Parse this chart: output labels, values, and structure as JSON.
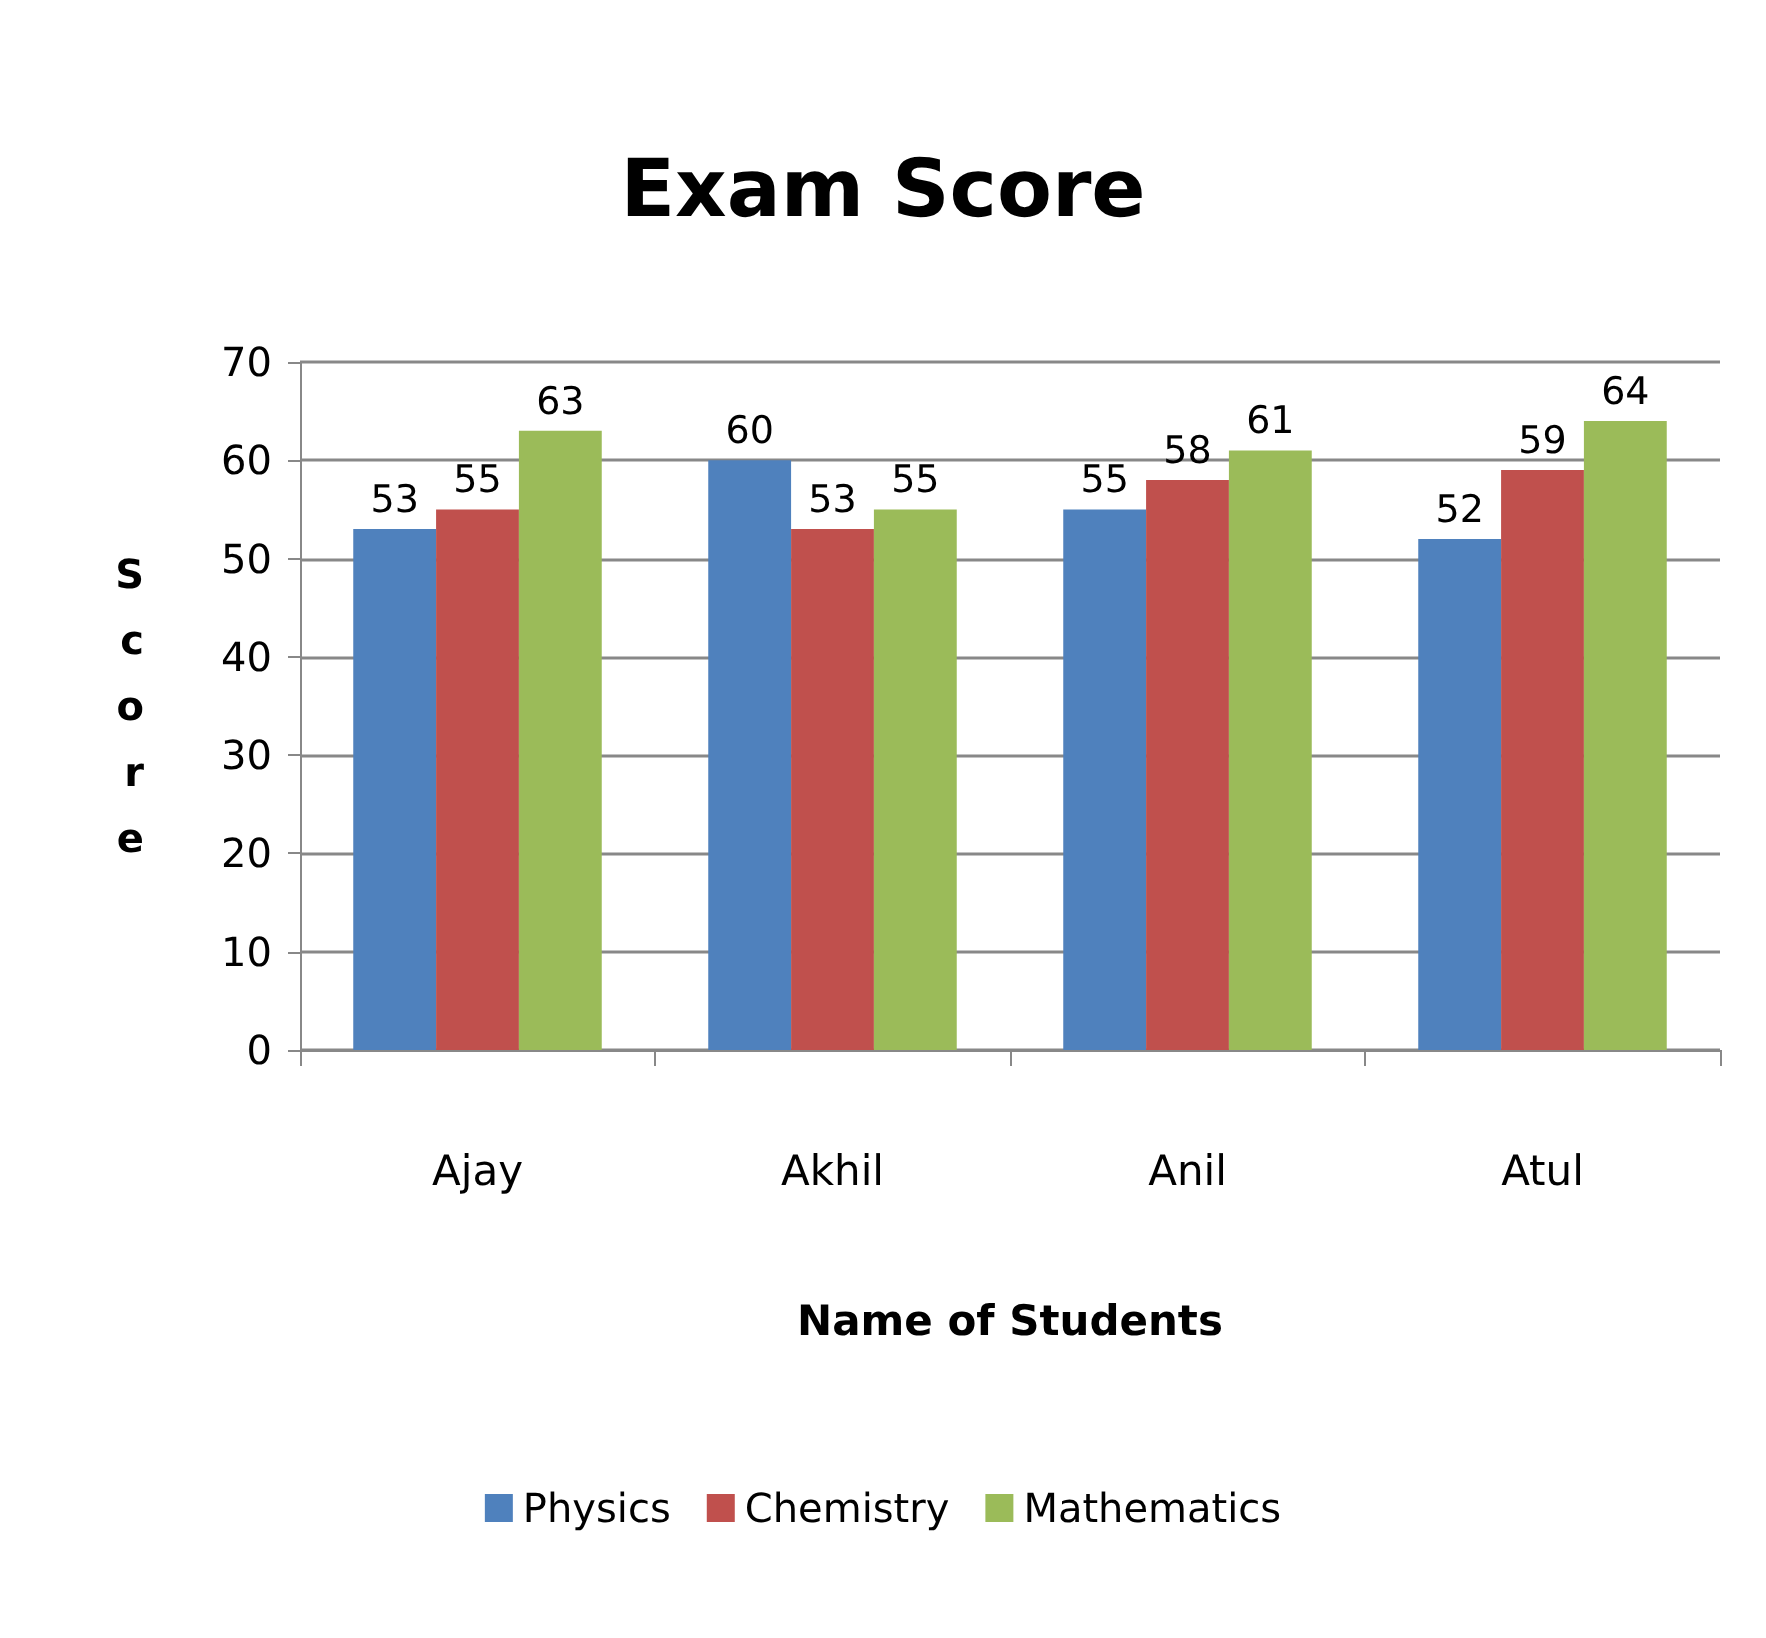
{
  "chart_data": {
    "type": "bar",
    "title": "Exam Score",
    "xlabel": "Name of Students",
    "ylabel": "Score",
    "categories": [
      "Ajay",
      "Akhil",
      "Anil",
      "Atul"
    ],
    "series": [
      {
        "name": "Physics",
        "color": "#4f81bd",
        "values": [
          53,
          60,
          55,
          52
        ]
      },
      {
        "name": "Chemistry",
        "color": "#c0504d",
        "values": [
          55,
          53,
          58,
          59
        ]
      },
      {
        "name": "Mathematics",
        "color": "#9bbb59",
        "values": [
          63,
          55,
          61,
          64
        ]
      }
    ],
    "ylim": [
      0,
      70
    ],
    "yticks": [
      0,
      10,
      20,
      30,
      40,
      50,
      60,
      70
    ],
    "grid": "y",
    "legend": "bottom",
    "data_labels": true
  }
}
